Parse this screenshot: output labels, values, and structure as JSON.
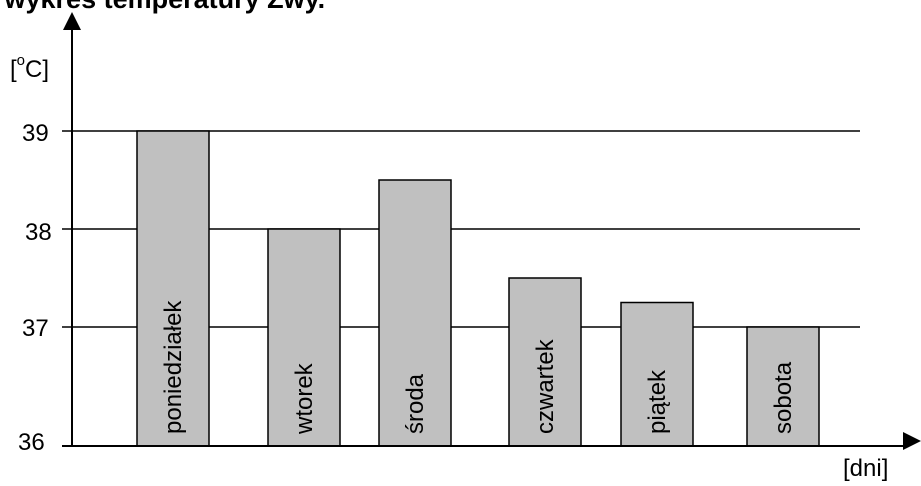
{
  "chart_data": {
    "type": "bar",
    "title": "a wykres temperatury Zwy.",
    "ylabel_prefix": "[",
    "ylabel_sup": "o",
    "ylabel_suffix": "C]",
    "xlabel": "[dni]",
    "categories": [
      "poniedziałek",
      "wtorek",
      "środa",
      "czwartek",
      "piątek",
      "sobota"
    ],
    "values": [
      39.0,
      38.0,
      38.5,
      37.5,
      37.25,
      37.0
    ],
    "ylim": [
      36,
      39.2
    ],
    "yticks": [
      "36",
      "37",
      "38",
      "39"
    ],
    "grid": true,
    "colors": {
      "bar": "#c0c0c0",
      "stroke": "#000000"
    }
  }
}
